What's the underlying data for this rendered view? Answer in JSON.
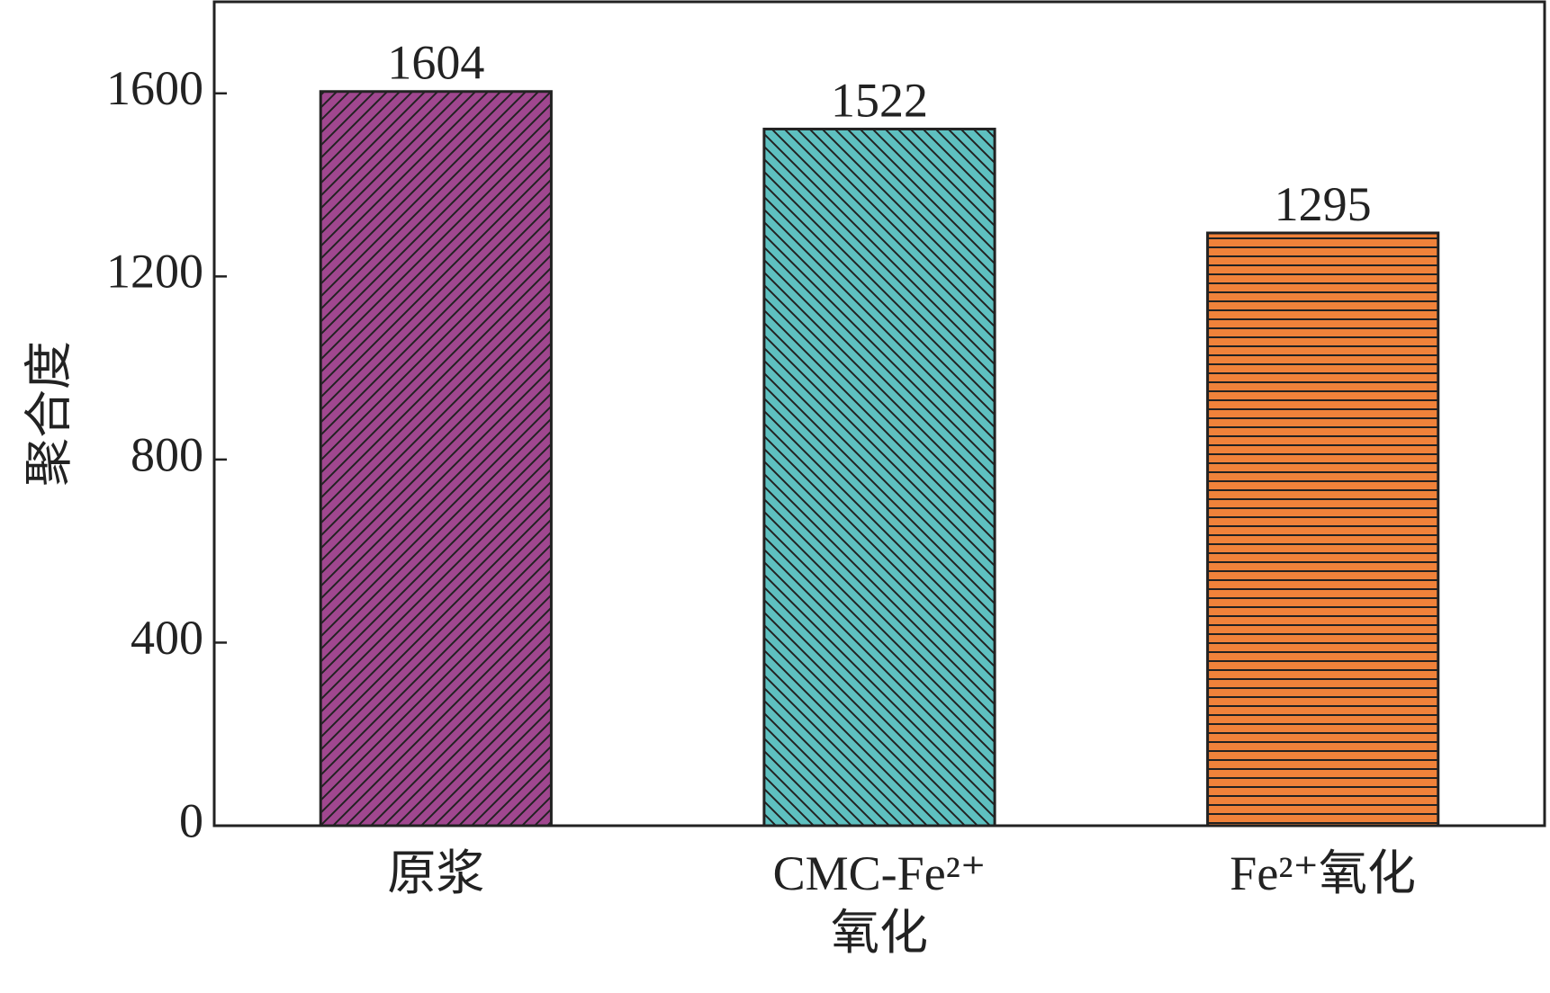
{
  "chart_data": {
    "type": "bar",
    "y_label": "聚合度",
    "categories": [
      "原浆",
      "CMC-Fe²⁺氧化",
      "Fe²⁺氧化"
    ],
    "values": [
      1604,
      1522,
      1295
    ],
    "colors": [
      "#a0478f",
      "#5ec0c0",
      "#f0823a"
    ],
    "hatch": [
      "/",
      "\\",
      "-"
    ],
    "ylim": [
      0,
      1800
    ],
    "yticks": [
      0,
      400,
      800,
      1200,
      1600
    ]
  }
}
